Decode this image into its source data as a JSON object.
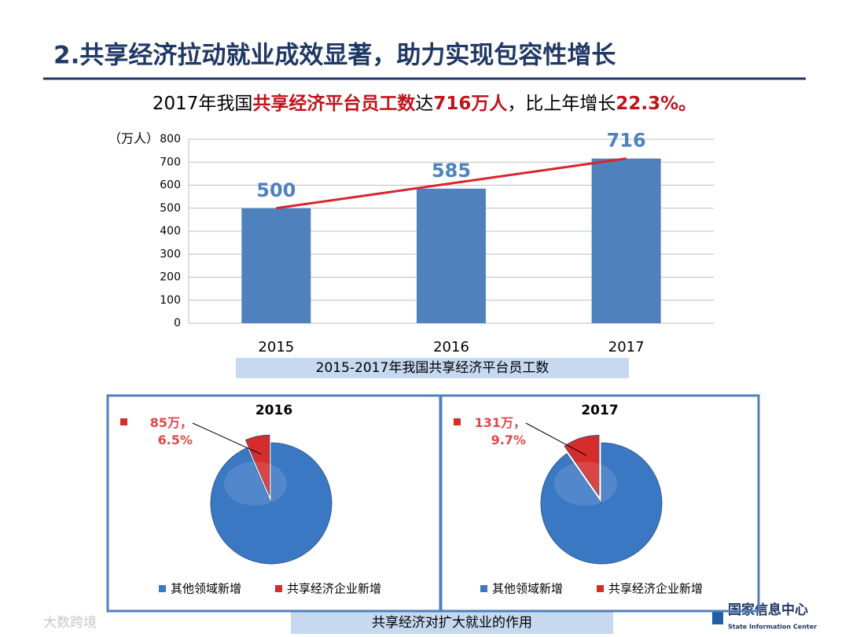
{
  "slide": {
    "title": "2.共享经济拉动就业成效显著，助力实现包容性增长",
    "headline": [
      {
        "text": "2017年我国",
        "emphasis": false
      },
      {
        "text": "共享经济平台员工数",
        "emphasis": true
      },
      {
        "text": "达",
        "emphasis": false
      },
      {
        "text": "716万人",
        "emphasis": true
      },
      {
        "text": "，比上年增长",
        "emphasis": false
      },
      {
        "text": "22.3%。",
        "emphasis": true
      }
    ],
    "pie_caption": "共享经济对扩大就业的作用",
    "logo": "国家信息中心",
    "logo_subtitle": "State Information Center",
    "watermark": "大数跨境"
  },
  "chart_data": [
    {
      "type": "bar",
      "y_label": "（万人）",
      "categories": [
        "2015",
        "2016",
        "2017"
      ],
      "values": [
        500,
        585,
        716
      ],
      "color": "#4f81bd",
      "label_color": "#4f81bd",
      "ylim": [
        0,
        800
      ],
      "yticks": [
        0,
        100,
        200,
        300,
        400,
        500,
        600,
        700,
        800
      ],
      "grid": true,
      "trendline": true,
      "trendline_color": "#d9232d",
      "caption": "2015-2017年我国共享经济平台员工数"
    },
    {
      "type": "pie",
      "title": "2016",
      "categories": [
        "其他领域新增",
        "共享经济企业新增"
      ],
      "values": [
        93.5,
        6.5
      ],
      "value_labels": [
        null,
        "85万，6.5%"
      ],
      "colors": [
        "#3b78c4",
        "#d62c2c"
      ],
      "legend": "bottom"
    },
    {
      "type": "pie",
      "title": "2017",
      "categories": [
        "其他领域新增",
        "共享经济企业新增"
      ],
      "values": [
        90.3,
        9.7
      ],
      "value_labels": [
        null,
        "131万，9.7%"
      ],
      "colors": [
        "#3b78c4",
        "#d62c2c"
      ],
      "legend": "bottom"
    }
  ]
}
